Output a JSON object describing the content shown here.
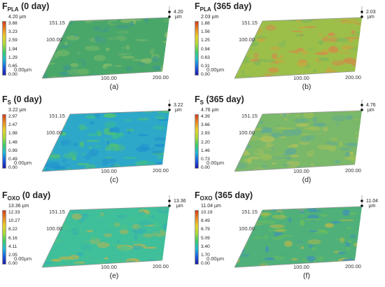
{
  "colorbar_gradient": [
    "#1b1ba8",
    "#1f5fe0",
    "#20b8d4",
    "#3ccc6c",
    "#a8d83a",
    "#e6d22a",
    "#e88a22",
    "#d03a1c"
  ],
  "panels": [
    {
      "title_main": "F",
      "title_sub": "PLA",
      "title_rest": " (0 day)",
      "colorbar_max": "4.20 µm",
      "colorbar_labels": [
        "3.88",
        "3.23",
        "2.59",
        "1.94",
        "1.29",
        "0.65",
        "0.00"
      ],
      "y_tick_top": "151.15",
      "y_tick_mid": "100.00",
      "origin": "0.00µm",
      "x_tick_mid": "100.00",
      "x_tick_end": "200.00",
      "height_value": "4.20",
      "height_unit": "µm",
      "panel_label": "(a)",
      "surface_colors": [
        "#4aa76a",
        "#6fb56a",
        "#3f9a8a",
        "#8bbd6a"
      ]
    },
    {
      "title_main": "F",
      "title_sub": "PLA",
      "title_rest": " (365 day)",
      "colorbar_max": "2.03 µm",
      "colorbar_labels": [
        "1.88",
        "1.56",
        "1.25",
        "0.94",
        "0.63",
        "0.31",
        "0.00"
      ],
      "y_tick_top": "151.15",
      "y_tick_mid": "100.00",
      "origin": "0.00µm",
      "x_tick_mid": "100.00",
      "x_tick_end": "200.00",
      "height_value": "2.03",
      "height_unit": "µm",
      "panel_label": "(b)",
      "surface_colors": [
        "#9cbf4a",
        "#c8a63e",
        "#7cb85a",
        "#d48a4a"
      ]
    },
    {
      "title_main": "F",
      "title_sub": "S",
      "title_rest": " (0 day)",
      "colorbar_max": "3.22 µm",
      "colorbar_labels": [
        "2.97",
        "2.47",
        "1.98",
        "1.48",
        "0.99",
        "0.49",
        "0.00"
      ],
      "y_tick_top": "151.15",
      "y_tick_mid": "100.00",
      "origin": "0.00µm",
      "x_tick_mid": "100.00",
      "x_tick_end": "200.00",
      "height_value": "3.22",
      "height_unit": "µm",
      "panel_label": "(c)",
      "surface_colors": [
        "#2ea8c8",
        "#3bbf8e",
        "#1f8fd0",
        "#56c66a"
      ]
    },
    {
      "title_main": "F",
      "title_sub": "S",
      "title_rest": " (365 day)",
      "colorbar_max": "4.76 µm",
      "colorbar_labels": [
        "4.39",
        "3.66",
        "2.93",
        "2.20",
        "1.46",
        "0.73",
        "0.00"
      ],
      "y_tick_top": "151.15",
      "y_tick_mid": "100.00",
      "origin": "0.00µm",
      "x_tick_mid": "100.00",
      "x_tick_end": "200.00",
      "height_value": "4.76",
      "height_unit": "µm",
      "panel_label": "(d)",
      "surface_colors": [
        "#7ab86a",
        "#9cbf5a",
        "#5ea89a",
        "#b6c25a"
      ]
    },
    {
      "title_main": "F",
      "title_sub": "OXO",
      "title_rest": " (0 day)",
      "colorbar_max": "13.36 µm",
      "colorbar_labels": [
        "12.33",
        "10.27",
        "8.22",
        "6.16",
        "4.11",
        "2.05",
        "0.00"
      ],
      "y_tick_top": "151.15",
      "y_tick_mid": "100.00",
      "origin": "0.00µm",
      "x_tick_mid": "100.00",
      "x_tick_end": "200.00",
      "height_value": "13.36",
      "height_unit": "µm",
      "panel_label": "(e)",
      "surface_colors": [
        "#3fbf9a",
        "#4cc28a",
        "#35b0b0",
        "#c8b24a"
      ]
    },
    {
      "title_main": "F",
      "title_sub": "OXO",
      "title_rest": " (365 day)",
      "colorbar_max": "11.04 µm",
      "colorbar_labels": [
        "10.19",
        "8.49",
        "6.79",
        "5.09",
        "3.40",
        "1.70",
        "0.00"
      ],
      "y_tick_top": "151.15",
      "y_tick_mid": "100.00",
      "origin": "0.00µm",
      "x_tick_mid": "100.00",
      "x_tick_end": "200.00",
      "height_value": "11.04",
      "height_unit": "µm",
      "panel_label": "(f)",
      "surface_colors": [
        "#4fb07a",
        "#3a8ec0",
        "#6cbf5a",
        "#b8b84a"
      ]
    }
  ]
}
